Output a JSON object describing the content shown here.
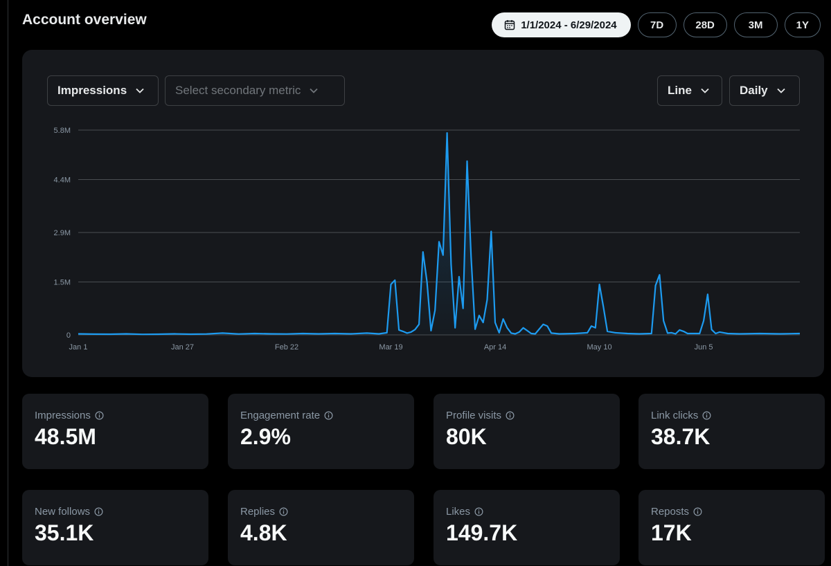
{
  "page": {
    "title": "Account overview"
  },
  "range": {
    "date_label": "1/1/2024 - 6/29/2024",
    "presets": [
      "7D",
      "28D",
      "3M",
      "1Y"
    ]
  },
  "controls": {
    "primary_metric": "Impressions",
    "secondary_placeholder": "Select secondary metric",
    "chart_type": "Line",
    "interval": "Daily"
  },
  "colors": {
    "line": "#1d9bf0",
    "background": "#000000",
    "card": "#16181c"
  },
  "chart_data": {
    "type": "line",
    "series_name": "Impressions",
    "y_ticks": [
      "5.8M",
      "4.4M",
      "2.9M",
      "1.5M",
      "0"
    ],
    "y_tick_values": [
      5800000,
      4400000,
      2900000,
      1500000,
      0
    ],
    "ylim": [
      0,
      5800000
    ],
    "x_ticks": [
      {
        "label": "Jan 1",
        "day": 0
      },
      {
        "label": "Jan 27",
        "day": 26
      },
      {
        "label": "Feb 22",
        "day": 52
      },
      {
        "label": "Mar 19",
        "day": 78
      },
      {
        "label": "Apr 14",
        "day": 104
      },
      {
        "label": "May 10",
        "day": 130
      },
      {
        "label": "Jun 5",
        "day": 156
      }
    ],
    "x_days": 180,
    "points": [
      [
        0,
        30000
      ],
      [
        4,
        22000
      ],
      [
        8,
        20000
      ],
      [
        12,
        30000
      ],
      [
        16,
        15000
      ],
      [
        20,
        20000
      ],
      [
        24,
        30000
      ],
      [
        28,
        20000
      ],
      [
        32,
        25000
      ],
      [
        36,
        50000
      ],
      [
        40,
        25000
      ],
      [
        44,
        40000
      ],
      [
        48,
        30000
      ],
      [
        52,
        25000
      ],
      [
        56,
        40000
      ],
      [
        60,
        30000
      ],
      [
        64,
        40000
      ],
      [
        68,
        30000
      ],
      [
        72,
        50000
      ],
      [
        75,
        30000
      ],
      [
        77,
        60000
      ],
      [
        78,
        1430000
      ],
      [
        79,
        1550000
      ],
      [
        80,
        140000
      ],
      [
        81,
        100000
      ],
      [
        82,
        50000
      ],
      [
        83,
        80000
      ],
      [
        84,
        150000
      ],
      [
        85,
        300000
      ],
      [
        86,
        2350000
      ],
      [
        87,
        1500000
      ],
      [
        88,
        120000
      ],
      [
        89,
        700000
      ],
      [
        90,
        2640000
      ],
      [
        91,
        2260000
      ],
      [
        92,
        5720000
      ],
      [
        93,
        2000000
      ],
      [
        94,
        200000
      ],
      [
        95,
        1650000
      ],
      [
        96,
        750000
      ],
      [
        97,
        4920000
      ],
      [
        98,
        2200000
      ],
      [
        99,
        160000
      ],
      [
        100,
        550000
      ],
      [
        101,
        350000
      ],
      [
        102,
        1000000
      ],
      [
        103,
        2930000
      ],
      [
        104,
        350000
      ],
      [
        105,
        60000
      ],
      [
        106,
        450000
      ],
      [
        107,
        200000
      ],
      [
        108,
        50000
      ],
      [
        109,
        30000
      ],
      [
        110,
        80000
      ],
      [
        111,
        200000
      ],
      [
        112,
        120000
      ],
      [
        113,
        40000
      ],
      [
        114,
        30000
      ],
      [
        116,
        300000
      ],
      [
        117,
        250000
      ],
      [
        118,
        50000
      ],
      [
        120,
        30000
      ],
      [
        124,
        40000
      ],
      [
        127,
        60000
      ],
      [
        128,
        250000
      ],
      [
        129,
        200000
      ],
      [
        130,
        1430000
      ],
      [
        131,
        800000
      ],
      [
        132,
        100000
      ],
      [
        134,
        60000
      ],
      [
        137,
        40000
      ],
      [
        140,
        30000
      ],
      [
        143,
        40000
      ],
      [
        144,
        1400000
      ],
      [
        145,
        1700000
      ],
      [
        146,
        400000
      ],
      [
        147,
        50000
      ],
      [
        148,
        60000
      ],
      [
        149,
        30000
      ],
      [
        150,
        140000
      ],
      [
        151,
        100000
      ],
      [
        152,
        40000
      ],
      [
        155,
        40000
      ],
      [
        156,
        400000
      ],
      [
        157,
        1150000
      ],
      [
        158,
        150000
      ],
      [
        159,
        40000
      ],
      [
        160,
        80000
      ],
      [
        162,
        40000
      ],
      [
        165,
        30000
      ],
      [
        170,
        40000
      ],
      [
        175,
        30000
      ],
      [
        180,
        40000
      ]
    ]
  },
  "stats": [
    {
      "label": "Impressions",
      "value": "48.5M"
    },
    {
      "label": "Engagement rate",
      "value": "2.9%"
    },
    {
      "label": "Profile visits",
      "value": "80K"
    },
    {
      "label": "Link clicks",
      "value": "38.7K"
    },
    {
      "label": "New follows",
      "value": "35.1K"
    },
    {
      "label": "Replies",
      "value": "4.8K"
    },
    {
      "label": "Likes",
      "value": "149.7K"
    },
    {
      "label": "Reposts",
      "value": "17K"
    }
  ]
}
